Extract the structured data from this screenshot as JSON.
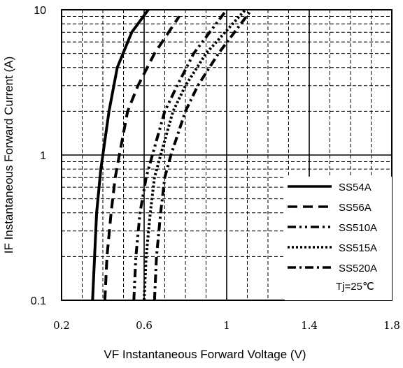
{
  "chart_data": {
    "type": "line",
    "xlabel": "VF  Instantaneous Forward Voltage (V)",
    "ylabel": "IF Instantaneous Forward Current (A)",
    "x_ticks": [
      "0.2",
      "0.6",
      "1",
      "1.4",
      "1.8"
    ],
    "y_ticks": [
      "0.1",
      "1",
      "10"
    ],
    "xlim": [
      0.2,
      1.8
    ],
    "ylim": [
      0.1,
      10
    ],
    "y_scale": "log",
    "grid": true,
    "legend_position": "bottom-right",
    "annotation": "Tj=25℃",
    "series": [
      {
        "name": "SS54A",
        "dash": "solid",
        "points": [
          [
            0.35,
            0.1
          ],
          [
            0.36,
            0.2
          ],
          [
            0.37,
            0.4
          ],
          [
            0.39,
            0.8
          ],
          [
            0.4,
            1
          ],
          [
            0.43,
            2
          ],
          [
            0.47,
            4
          ],
          [
            0.54,
            7
          ],
          [
            0.62,
            10
          ]
        ]
      },
      {
        "name": "SS56A",
        "dash": "dash",
        "points": [
          [
            0.41,
            0.1
          ],
          [
            0.42,
            0.2
          ],
          [
            0.44,
            0.4
          ],
          [
            0.46,
            0.7
          ],
          [
            0.48,
            1
          ],
          [
            0.52,
            2
          ],
          [
            0.57,
            3
          ],
          [
            0.65,
            5
          ],
          [
            0.77,
            9
          ]
        ]
      },
      {
        "name": "SS510A",
        "dash": "dashdotdot",
        "points": [
          [
            0.55,
            0.1
          ],
          [
            0.56,
            0.2
          ],
          [
            0.58,
            0.4
          ],
          [
            0.61,
            0.7
          ],
          [
            0.64,
            1
          ],
          [
            0.7,
            2
          ],
          [
            0.76,
            3
          ],
          [
            0.84,
            5
          ],
          [
            1.0,
            10
          ]
        ]
      },
      {
        "name": "SS515A",
        "dash": "dot",
        "points": [
          [
            0.6,
            0.1
          ],
          [
            0.61,
            0.2
          ],
          [
            0.63,
            0.4
          ],
          [
            0.65,
            0.7
          ],
          [
            0.68,
            1
          ],
          [
            0.74,
            2
          ],
          [
            0.8,
            3
          ],
          [
            0.9,
            5
          ],
          [
            1.09,
            10
          ]
        ]
      },
      {
        "name": "SS520A",
        "dash": "dashdot",
        "points": [
          [
            0.65,
            0.1
          ],
          [
            0.66,
            0.2
          ],
          [
            0.68,
            0.4
          ],
          [
            0.7,
            0.7
          ],
          [
            0.73,
            1
          ],
          [
            0.8,
            2
          ],
          [
            0.86,
            3
          ],
          [
            0.96,
            5
          ],
          [
            1.12,
            10
          ]
        ]
      }
    ]
  }
}
